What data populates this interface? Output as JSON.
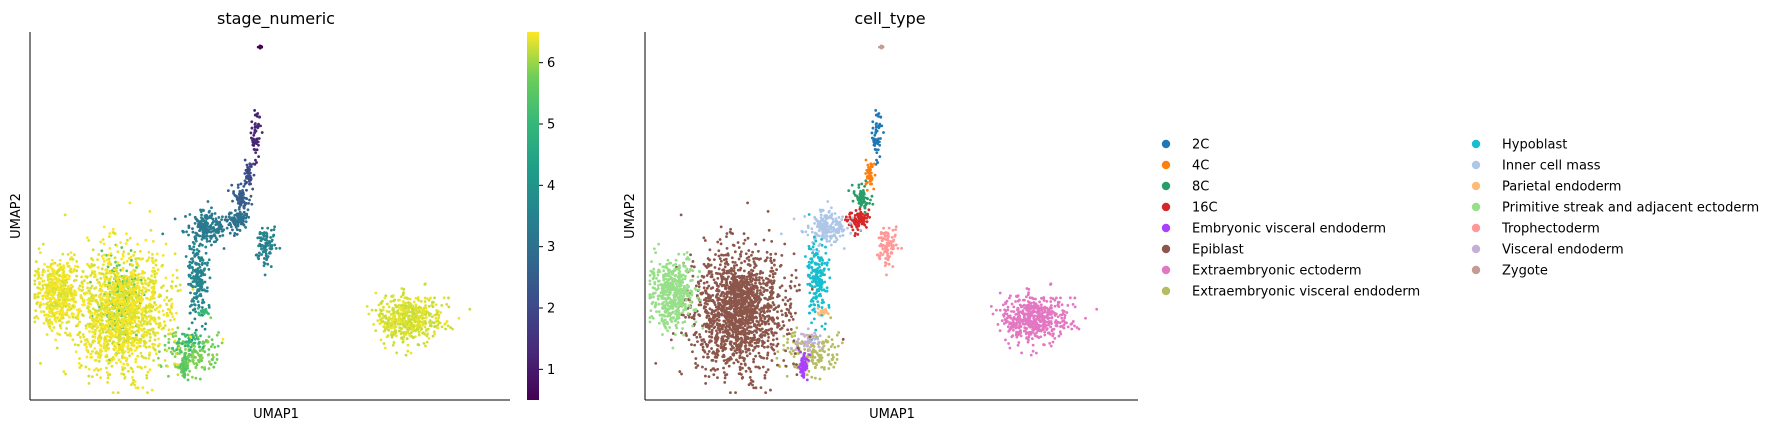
{
  "chart_data": [
    {
      "type": "scatter",
      "title": "stage_numeric",
      "xlabel": "UMAP1",
      "ylabel": "UMAP2",
      "color_variable": "stage_numeric",
      "colorbar": {
        "ticks": [
          1,
          2,
          3,
          4,
          5,
          6
        ],
        "range": [
          0.5,
          6.5
        ],
        "colormap": "viridis"
      },
      "grid": false,
      "axes_ticks": false
    },
    {
      "type": "scatter",
      "title": "cell_type",
      "xlabel": "UMAP1",
      "ylabel": "UMAP2",
      "color_variable": "cell_type",
      "grid": false,
      "axes_ticks": false,
      "legend_position": "right",
      "legend": [
        {
          "label": "2C",
          "color": "#1f77b4"
        },
        {
          "label": "4C",
          "color": "#ff7f0e"
        },
        {
          "label": "8C",
          "color": "#279e68"
        },
        {
          "label": "16C",
          "color": "#d62728"
        },
        {
          "label": "Embryonic visceral endoderm",
          "color": "#aa40fc"
        },
        {
          "label": "Epiblast",
          "color": "#8c564b"
        },
        {
          "label": "Extraembryonic ectoderm",
          "color": "#e377c2"
        },
        {
          "label": "Extraembryonic visceral endoderm",
          "color": "#b5bd61"
        },
        {
          "label": "Hypoblast",
          "color": "#17becf"
        },
        {
          "label": "Inner cell mass",
          "color": "#aec7e8"
        },
        {
          "label": "Parietal endoderm",
          "color": "#ffbb78"
        },
        {
          "label": "Primitive streak and adjacent ectoderm",
          "color": "#98df8a"
        },
        {
          "label": "Trophectoderm",
          "color": "#ff9896"
        },
        {
          "label": "Visceral endoderm",
          "color": "#c5b0d5"
        },
        {
          "label": "Zygote",
          "color": "#c49c94"
        }
      ],
      "clusters": [
        {
          "cell_type": "Zygote",
          "stage_numeric": 0.5,
          "center": [
            0.48,
            0.96
          ],
          "spread": [
            0.004,
            0.004
          ],
          "n": 10
        },
        {
          "cell_type": "2C",
          "stage_numeric": 1.2,
          "center": [
            0.47,
            0.72
          ],
          "spread": [
            0.01,
            0.06
          ],
          "n": 50
        },
        {
          "cell_type": "4C",
          "stage_numeric": 2.0,
          "center": [
            0.455,
            0.61
          ],
          "spread": [
            0.008,
            0.03
          ],
          "n": 50
        },
        {
          "cell_type": "8C",
          "stage_numeric": 2.5,
          "center": [
            0.44,
            0.55
          ],
          "spread": [
            0.014,
            0.03
          ],
          "n": 70
        },
        {
          "cell_type": "16C",
          "stage_numeric": 3.0,
          "center": [
            0.43,
            0.49
          ],
          "spread": [
            0.02,
            0.03
          ],
          "n": 90
        },
        {
          "cell_type": "Inner cell mass",
          "stage_numeric": 3.3,
          "center": [
            0.365,
            0.47
          ],
          "spread": [
            0.04,
            0.04
          ],
          "n": 200
        },
        {
          "cell_type": "Trophectoderm",
          "stage_numeric": 3.5,
          "center": [
            0.49,
            0.42
          ],
          "spread": [
            0.02,
            0.05
          ],
          "n": 90
        },
        {
          "cell_type": "Hypoblast",
          "stage_numeric": 3.6,
          "center": [
            0.35,
            0.33
          ],
          "spread": [
            0.02,
            0.09
          ],
          "n": 200
        },
        {
          "cell_type": "Parietal endoderm",
          "stage_numeric": 5.0,
          "center": [
            0.36,
            0.24
          ],
          "spread": [
            0.01,
            0.01
          ],
          "n": 20
        },
        {
          "cell_type": "Epiblast",
          "stage_numeric": 5.5,
          "center": [
            0.19,
            0.27
          ],
          "spread": [
            0.035,
            0.1
          ],
          "n": 220
        },
        {
          "cell_type": "Extraembryonic visceral endoderm",
          "stage_numeric": 5.8,
          "center": [
            0.34,
            0.13
          ],
          "spread": [
            0.05,
            0.05
          ],
          "n": 160
        },
        {
          "cell_type": "Embryonic visceral endoderm",
          "stage_numeric": 5.5,
          "center": [
            0.32,
            0.09
          ],
          "spread": [
            0.01,
            0.03
          ],
          "n": 50
        },
        {
          "cell_type": "Visceral endoderm",
          "stage_numeric": 5.0,
          "center": [
            0.33,
            0.16
          ],
          "spread": [
            0.02,
            0.03
          ],
          "n": 40
        },
        {
          "cell_type": "Extraembryonic ectoderm",
          "stage_numeric": 6.3,
          "center": [
            0.79,
            0.22
          ],
          "spread": [
            0.06,
            0.06
          ],
          "n": 500
        },
        {
          "cell_type": "Epiblast",
          "stage_numeric": 6.4,
          "center": [
            0.19,
            0.24
          ],
          "spread": [
            0.09,
            0.15
          ],
          "n": 1400
        },
        {
          "cell_type": "Primitive streak and adjacent ectoderm",
          "stage_numeric": 6.4,
          "center": [
            0.055,
            0.29
          ],
          "spread": [
            0.04,
            0.08
          ],
          "n": 500
        }
      ]
    }
  ]
}
